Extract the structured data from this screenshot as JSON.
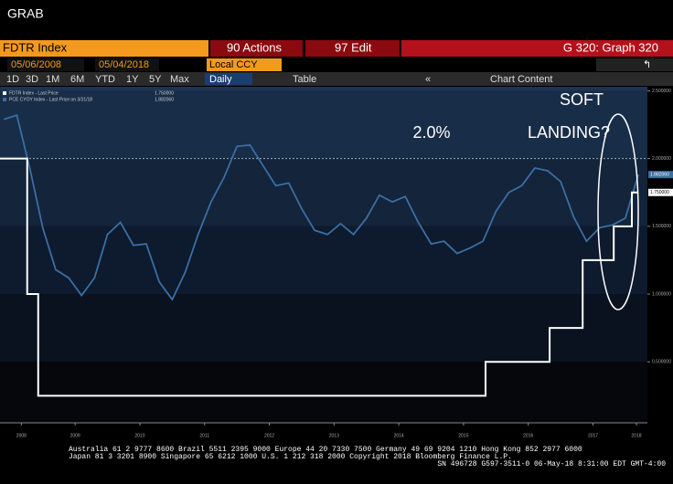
{
  "ui": {
    "window_title": "GRAB",
    "ticker": "FDTR Index",
    "actions": "90 Actions",
    "edit": "97 Edit",
    "graph_title": "G 320: Graph 320",
    "start_date": "05/06/2008",
    "end_date": "05/04/2018",
    "currency": "Local CCY",
    "ranges": [
      "1D",
      "3D",
      "1M",
      "6M",
      "YTD",
      "1Y",
      "5Y",
      "Max"
    ],
    "frequency": "Daily",
    "table": "Table",
    "chart_content": "Chart Content",
    "footer": [
      "Australia 61 2 9777 8600 Brazil 5511 2395 9000 Europe 44 20 7330 7500 Germany 49 69 9204 1210 Hong Kong 852 2977 6000",
      "Japan 81 3 3201 8900       Singapore 65 6212 1000       U.S. 1 212 318 2000       Copyright 2018 Bloomberg Finance L.P.",
      "SN 496728 G597-3511-0 06-May-18  8:31:00 EDT  GMT-4:00"
    ]
  },
  "chart_data": {
    "type": "line",
    "annotations": [
      "2.0%",
      "SOFT",
      "LANDING?"
    ],
    "reference_line": 2,
    "xlim": [
      2008.34,
      2018.34
    ],
    "xticks": [
      {
        "value": 2008.67,
        "label": "2008"
      },
      {
        "value": 2009.5,
        "label": "2009"
      },
      {
        "value": 2010.5,
        "label": "2010"
      },
      {
        "value": 2011.5,
        "label": "2011"
      },
      {
        "value": 2012.5,
        "label": "2012"
      },
      {
        "value": 2013.5,
        "label": "2013"
      },
      {
        "value": 2014.5,
        "label": "2014"
      },
      {
        "value": 2015.5,
        "label": "2015"
      },
      {
        "value": 2016.5,
        "label": "2016"
      },
      {
        "value": 2017.5,
        "label": "2017"
      },
      {
        "value": 2018.17,
        "label": "2018"
      }
    ],
    "ylim": [
      0.05,
      2.53
    ],
    "yticks": [
      {
        "value": 0.5,
        "label": "0.500000"
      },
      {
        "value": 1,
        "label": "1.000000"
      },
      {
        "value": 1.5,
        "label": "1.500000"
      },
      {
        "value": 2,
        "label": "2.000000"
      },
      {
        "value": 2.5,
        "label": "2.500000"
      }
    ],
    "series": [
      {
        "name": "FDTR Index - Last Price",
        "last_value_label": "1.750000",
        "color": "#ffffff",
        "x": [
          2008.34,
          2008.76,
          2008.76,
          2008.93,
          2008.93,
          2015.84,
          2015.84,
          2016.83,
          2016.83,
          2017.34,
          2017.34,
          2017.82,
          2017.82,
          2018.1,
          2018.1,
          2018.2
        ],
        "values": [
          2,
          2,
          1,
          1,
          0.25,
          0.25,
          0.5,
          0.5,
          0.75,
          0.75,
          1.25,
          1.25,
          1.5,
          1.5,
          1.75,
          1.75
        ]
      },
      {
        "name": "PCE CYOY Index - Last Price on 3/31/18",
        "last_value_label": "1.882060",
        "color": "#3a6ea5",
        "x": [
          2008.4,
          2008.6,
          2008.8,
          2009.0,
          2009.2,
          2009.4,
          2009.6,
          2009.8,
          2010.0,
          2010.2,
          2010.4,
          2010.6,
          2010.8,
          2011.0,
          2011.2,
          2011.4,
          2011.6,
          2011.8,
          2012.0,
          2012.2,
          2012.4,
          2012.6,
          2012.8,
          2013.0,
          2013.2,
          2013.4,
          2013.6,
          2013.8,
          2014.0,
          2014.2,
          2014.4,
          2014.6,
          2014.8,
          2015.0,
          2015.2,
          2015.4,
          2015.6,
          2015.8,
          2016.0,
          2016.2,
          2016.4,
          2016.6,
          2016.8,
          2017.0,
          2017.2,
          2017.4,
          2017.6,
          2017.8,
          2018.0,
          2018.2
        ],
        "values": [
          2.29,
          2.32,
          1.93,
          1.49,
          1.18,
          1.12,
          0.99,
          1.12,
          1.44,
          1.53,
          1.36,
          1.37,
          1.09,
          0.96,
          1.16,
          1.44,
          1.68,
          1.86,
          2.09,
          2.1,
          1.95,
          1.8,
          1.82,
          1.63,
          1.47,
          1.44,
          1.52,
          1.44,
          1.56,
          1.73,
          1.68,
          1.72,
          1.53,
          1.37,
          1.39,
          1.3,
          1.34,
          1.39,
          1.61,
          1.75,
          1.8,
          1.93,
          1.91,
          1.83,
          1.57,
          1.39,
          1.49,
          1.51,
          1.56,
          1.882
        ]
      }
    ]
  }
}
